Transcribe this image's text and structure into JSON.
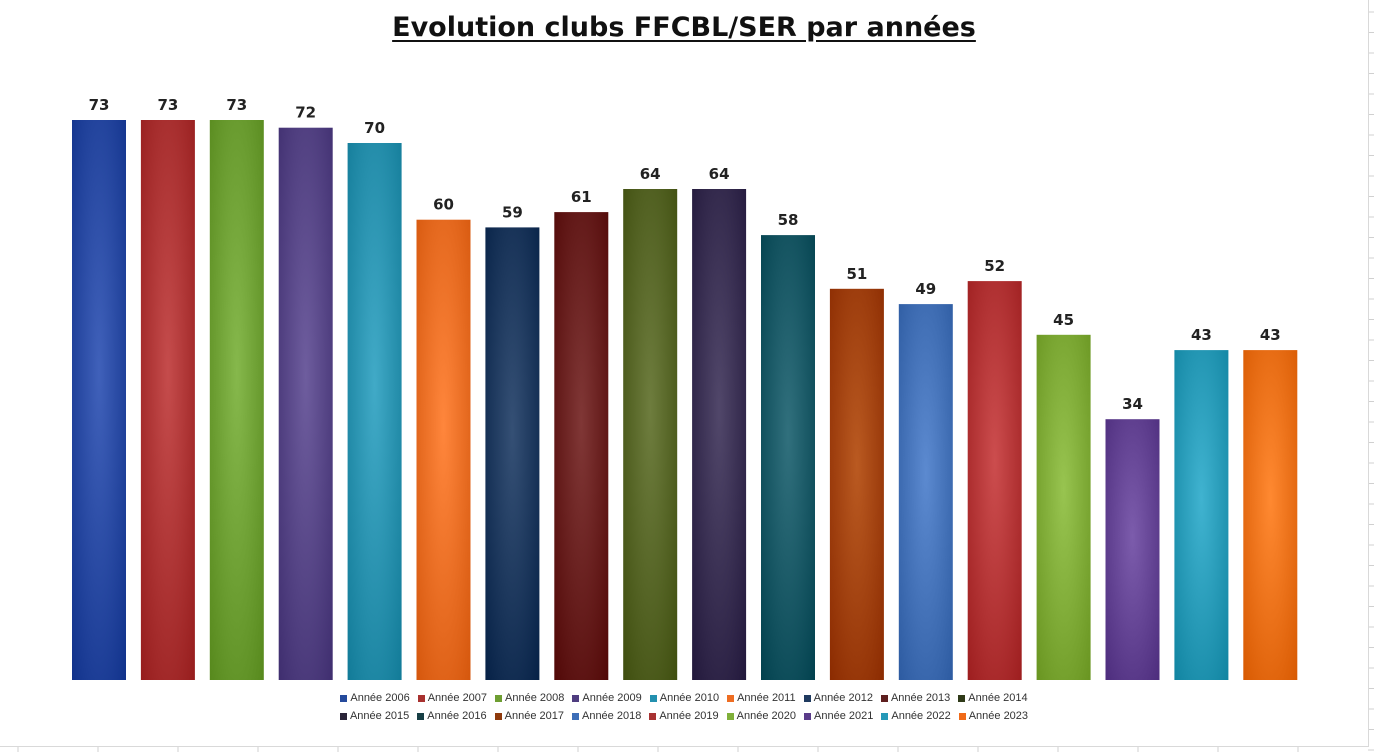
{
  "chart_data": {
    "type": "bar",
    "title": "Evolution clubs FFCBL/SER par années",
    "xlabel": "",
    "ylabel": "",
    "ylim": [
      0,
      73
    ],
    "grid": false,
    "legend_position": "bottom",
    "data_labels": true,
    "categories": [
      "Année 2006",
      "Année 2007",
      "Année 2008",
      "Année 2009",
      "Année 2010",
      "Année 2011",
      "Année 2012",
      "Année 2013",
      "Année 2014",
      "Année 2015",
      "Année 2016",
      "Année 2017",
      "Année 2018",
      "Année 2019",
      "Année 2020",
      "Année 2021",
      "Année 2022",
      "Année 2023"
    ],
    "values": [
      73,
      73,
      73,
      72,
      70,
      60,
      59,
      61,
      64,
      64,
      58,
      51,
      49,
      52,
      45,
      34,
      43,
      43
    ],
    "colors": [
      "#2E4FA8",
      "#B33A3A",
      "#74A63A",
      "#5C4B8C",
      "#2F98B5",
      "#F2742A",
      "#233E63",
      "#6E2524",
      "#5C6B2C",
      "#3F3558",
      "#1F5E6B",
      "#A8480F",
      "#4A78BE",
      "#BA3B3C",
      "#86B23E",
      "#6A4A9A",
      "#2EA1BE",
      "#F5771F"
    ],
    "legend_swatch_colors": [
      "#254A9C",
      "#A8312F",
      "#6E9E32",
      "#4F3D80",
      "#2390AF",
      "#EE6D22",
      "#1F3A5F",
      "#5E1F1F",
      "#2F3A18",
      "#2A2438",
      "#173F45",
      "#8F3A0C",
      "#3D6EB8",
      "#A83232",
      "#80B03A",
      "#5A3C8A",
      "#2599B8",
      "#F06A18"
    ]
  }
}
